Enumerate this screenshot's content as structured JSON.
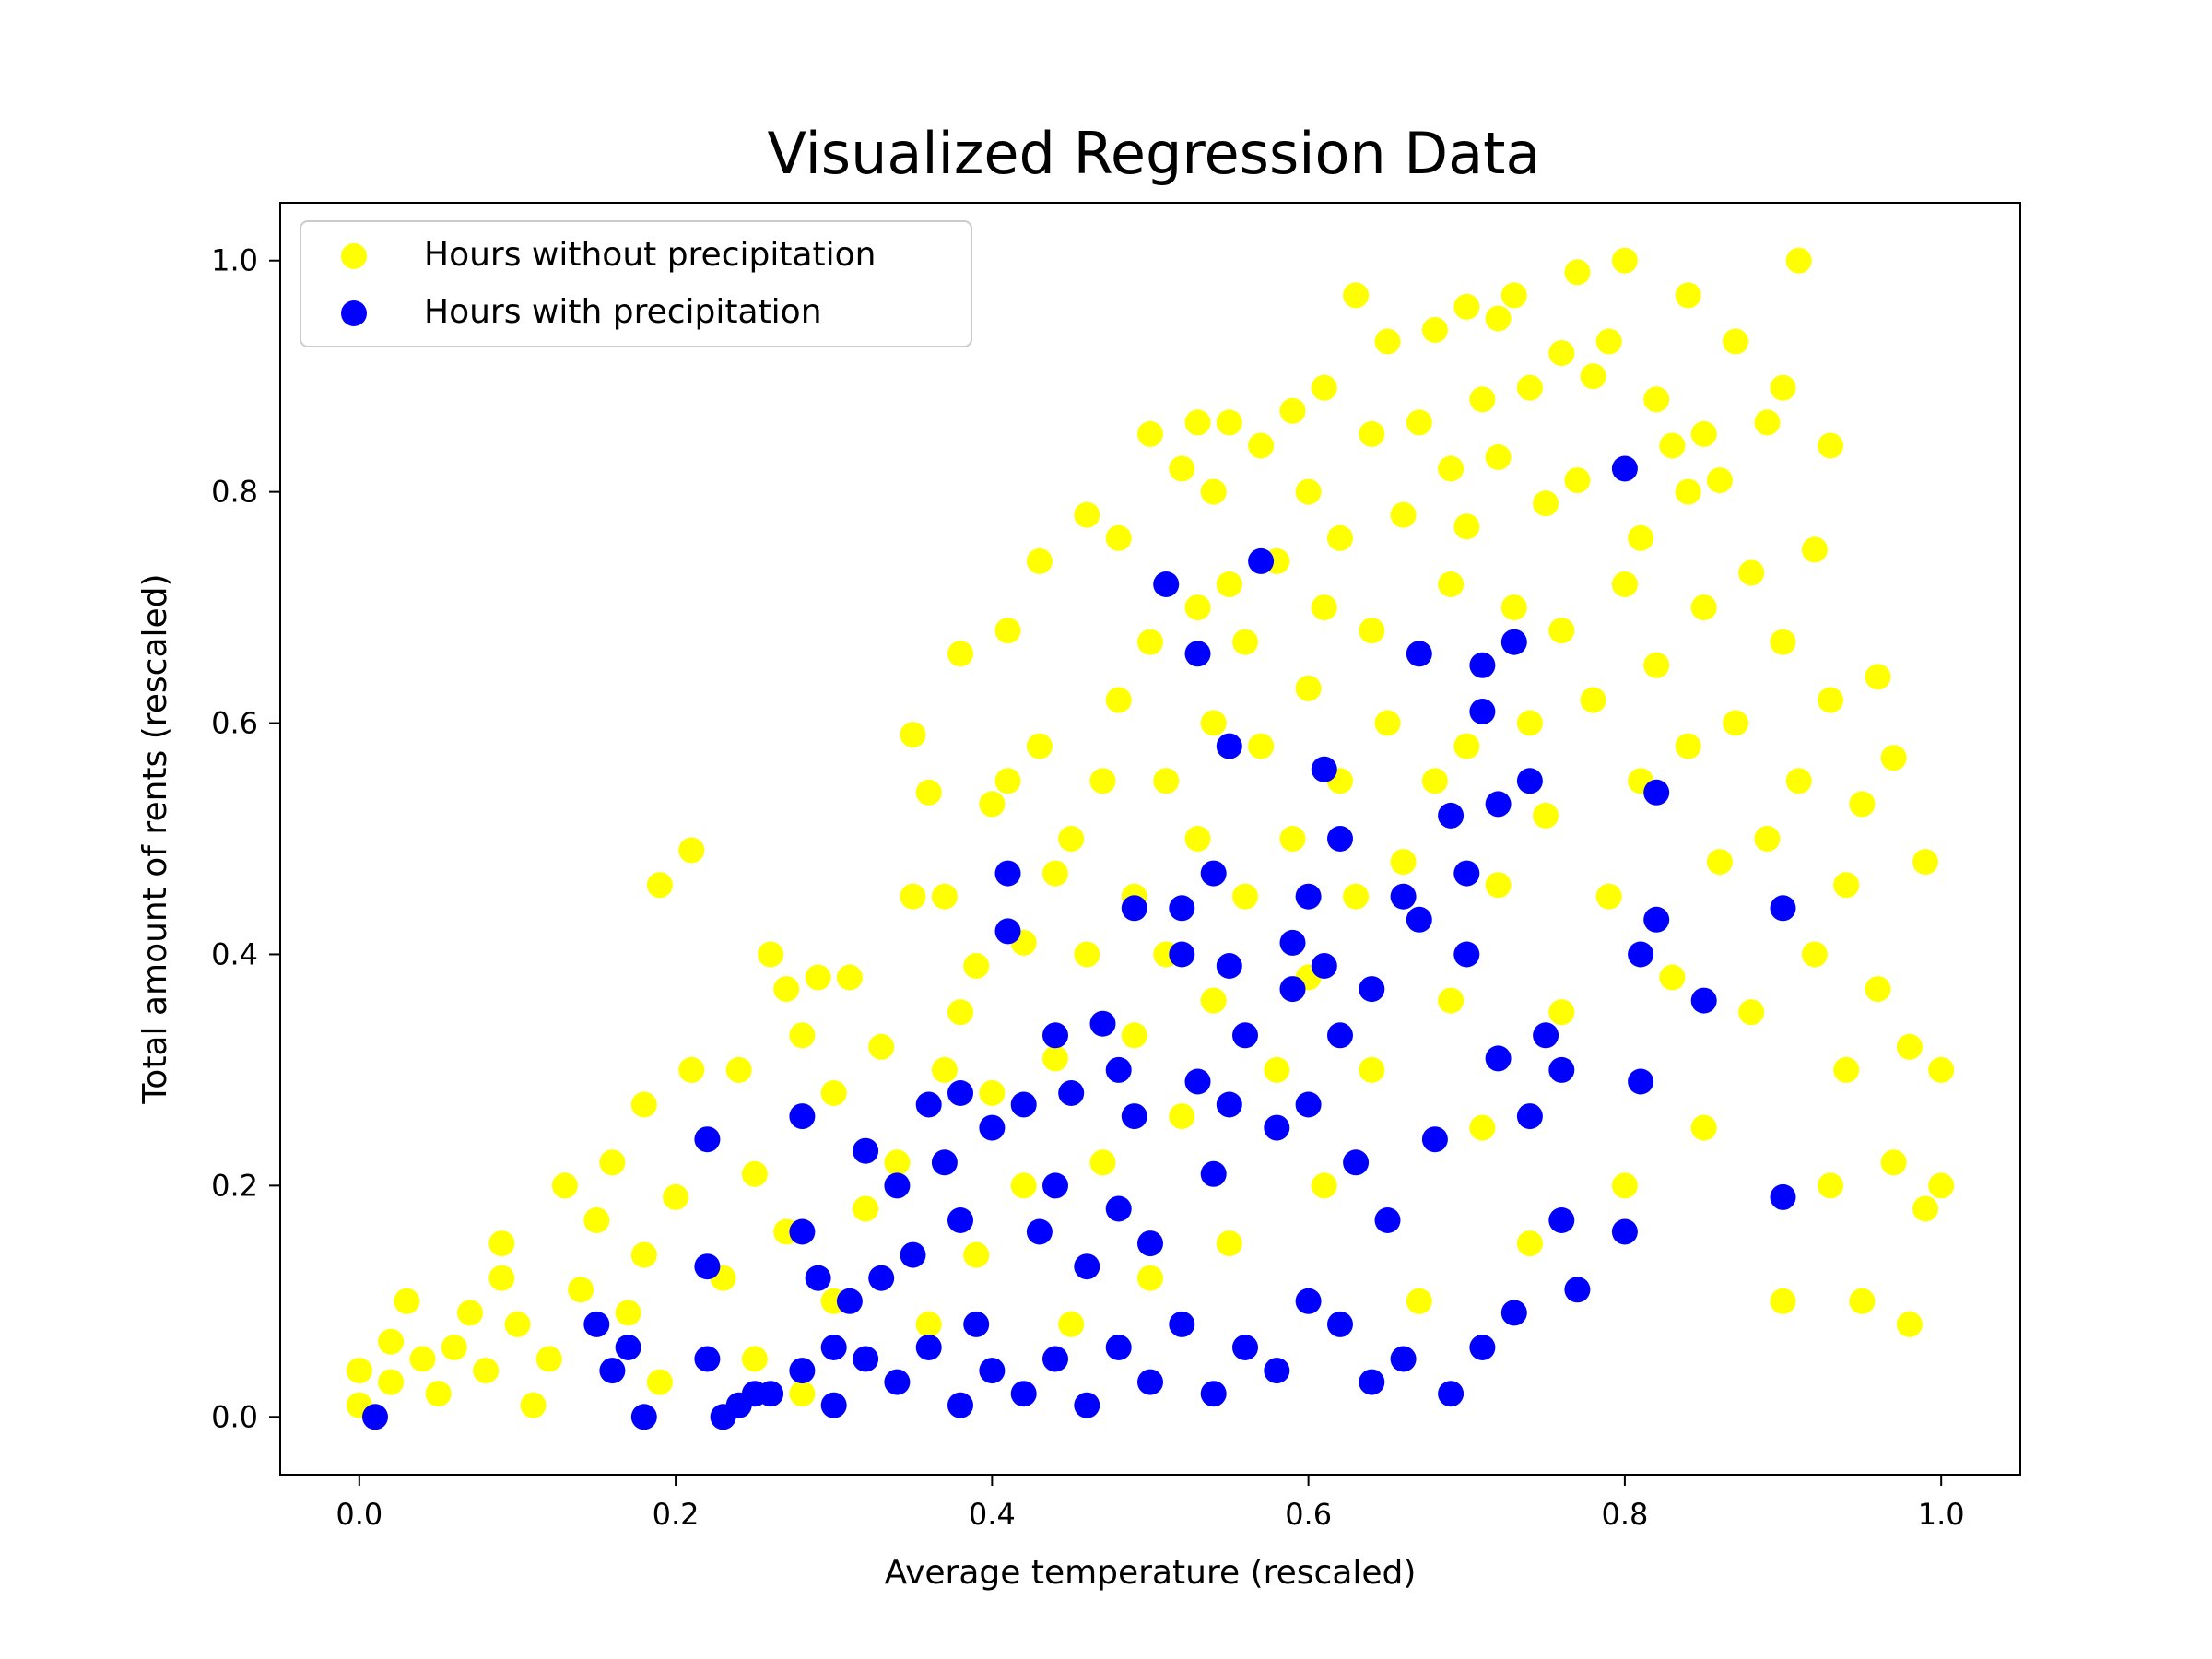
{
  "chart_data": {
    "type": "scatter",
    "title": "Visualized Regression Data",
    "xlabel": "Average temperature (rescaled)",
    "ylabel": "Total amount of rents (rescaled)",
    "xlim": [
      -0.05,
      1.05
    ],
    "ylim": [
      -0.05,
      1.05
    ],
    "xticks": [
      "0.0",
      "0.2",
      "0.4",
      "0.6",
      "0.8",
      "1.0"
    ],
    "yticks": [
      "0.0",
      "0.2",
      "0.4",
      "0.6",
      "0.8",
      "1.0"
    ],
    "grid": false,
    "legend_position": "upper-left",
    "series": [
      {
        "name": "Hours without precipitation",
        "color": "#ffff00",
        "points": [
          [
            0.0,
            0.04
          ],
          [
            0.0,
            0.01
          ],
          [
            0.02,
            0.03
          ],
          [
            0.02,
            0.065
          ],
          [
            0.03,
            0.1
          ],
          [
            0.04,
            0.05
          ],
          [
            0.05,
            0.02
          ],
          [
            0.06,
            0.06
          ],
          [
            0.07,
            0.09
          ],
          [
            0.08,
            0.04
          ],
          [
            0.09,
            0.15
          ],
          [
            0.09,
            0.12
          ],
          [
            0.1,
            0.08
          ],
          [
            0.11,
            0.01
          ],
          [
            0.12,
            0.05
          ],
          [
            0.13,
            0.2
          ],
          [
            0.14,
            0.11
          ],
          [
            0.15,
            0.17
          ],
          [
            0.16,
            0.22
          ],
          [
            0.17,
            0.09
          ],
          [
            0.18,
            0.27
          ],
          [
            0.18,
            0.14
          ],
          [
            0.19,
            0.46
          ],
          [
            0.19,
            0.03
          ],
          [
            0.2,
            0.19
          ],
          [
            0.21,
            0.49
          ],
          [
            0.21,
            0.3
          ],
          [
            0.22,
            0.24
          ],
          [
            0.23,
            0.12
          ],
          [
            0.24,
            0.3
          ],
          [
            0.25,
            0.21
          ],
          [
            0.25,
            0.05
          ],
          [
            0.26,
            0.4
          ],
          [
            0.27,
            0.37
          ],
          [
            0.27,
            0.16
          ],
          [
            0.28,
            0.33
          ],
          [
            0.28,
            0.02
          ],
          [
            0.29,
            0.38
          ],
          [
            0.3,
            0.28
          ],
          [
            0.3,
            0.1
          ],
          [
            0.31,
            0.38
          ],
          [
            0.32,
            0.18
          ],
          [
            0.33,
            0.32
          ],
          [
            0.34,
            0.22
          ],
          [
            0.35,
            0.59
          ],
          [
            0.35,
            0.45
          ],
          [
            0.36,
            0.54
          ],
          [
            0.36,
            0.08
          ],
          [
            0.37,
            0.45
          ],
          [
            0.37,
            0.3
          ],
          [
            0.38,
            0.66
          ],
          [
            0.38,
            0.35
          ],
          [
            0.39,
            0.39
          ],
          [
            0.39,
            0.14
          ],
          [
            0.4,
            0.53
          ],
          [
            0.4,
            0.28
          ],
          [
            0.41,
            0.55
          ],
          [
            0.41,
            0.68
          ],
          [
            0.42,
            0.41
          ],
          [
            0.42,
            0.2
          ],
          [
            0.43,
            0.74
          ],
          [
            0.43,
            0.58
          ],
          [
            0.44,
            0.47
          ],
          [
            0.44,
            0.31
          ],
          [
            0.45,
            0.5
          ],
          [
            0.45,
            0.08
          ],
          [
            0.46,
            0.78
          ],
          [
            0.46,
            0.4
          ],
          [
            0.47,
            0.55
          ],
          [
            0.47,
            0.22
          ],
          [
            0.48,
            0.76
          ],
          [
            0.48,
            0.62
          ],
          [
            0.49,
            0.45
          ],
          [
            0.49,
            0.33
          ],
          [
            0.5,
            0.85
          ],
          [
            0.5,
            0.67
          ],
          [
            0.5,
            0.12
          ],
          [
            0.51,
            0.55
          ],
          [
            0.51,
            0.4
          ],
          [
            0.52,
            0.82
          ],
          [
            0.52,
            0.26
          ],
          [
            0.53,
            0.86
          ],
          [
            0.53,
            0.7
          ],
          [
            0.53,
            0.5
          ],
          [
            0.54,
            0.8
          ],
          [
            0.54,
            0.6
          ],
          [
            0.54,
            0.36
          ],
          [
            0.55,
            0.86
          ],
          [
            0.55,
            0.72
          ],
          [
            0.55,
            0.15
          ],
          [
            0.56,
            0.67
          ],
          [
            0.56,
            0.45
          ],
          [
            0.57,
            0.84
          ],
          [
            0.57,
            0.58
          ],
          [
            0.58,
            0.74
          ],
          [
            0.58,
            0.3
          ],
          [
            0.59,
            0.87
          ],
          [
            0.59,
            0.5
          ],
          [
            0.6,
            0.8
          ],
          [
            0.6,
            0.63
          ],
          [
            0.6,
            0.38
          ],
          [
            0.61,
            0.89
          ],
          [
            0.61,
            0.7
          ],
          [
            0.61,
            0.2
          ],
          [
            0.62,
            0.76
          ],
          [
            0.62,
            0.55
          ],
          [
            0.63,
            0.97
          ],
          [
            0.63,
            0.45
          ],
          [
            0.64,
            0.85
          ],
          [
            0.64,
            0.68
          ],
          [
            0.64,
            0.3
          ],
          [
            0.65,
            0.93
          ],
          [
            0.65,
            0.6
          ],
          [
            0.66,
            0.78
          ],
          [
            0.66,
            0.48
          ],
          [
            0.67,
            0.86
          ],
          [
            0.67,
            0.66
          ],
          [
            0.67,
            0.1
          ],
          [
            0.68,
            0.94
          ],
          [
            0.68,
            0.55
          ],
          [
            0.69,
            0.82
          ],
          [
            0.69,
            0.72
          ],
          [
            0.69,
            0.36
          ],
          [
            0.7,
            0.96
          ],
          [
            0.7,
            0.77
          ],
          [
            0.7,
            0.58
          ],
          [
            0.71,
            0.88
          ],
          [
            0.71,
            0.65
          ],
          [
            0.71,
            0.25
          ],
          [
            0.72,
            0.95
          ],
          [
            0.72,
            0.83
          ],
          [
            0.72,
            0.46
          ],
          [
            0.73,
            0.97
          ],
          [
            0.73,
            0.7
          ],
          [
            0.74,
            0.89
          ],
          [
            0.74,
            0.6
          ],
          [
            0.74,
            0.15
          ],
          [
            0.75,
            0.79
          ],
          [
            0.75,
            0.52
          ],
          [
            0.76,
            0.92
          ],
          [
            0.76,
            0.68
          ],
          [
            0.76,
            0.35
          ],
          [
            0.77,
            0.99
          ],
          [
            0.77,
            0.81
          ],
          [
            0.78,
            0.9
          ],
          [
            0.78,
            0.62
          ],
          [
            0.79,
            0.93
          ],
          [
            0.79,
            0.45
          ],
          [
            0.8,
            1.0
          ],
          [
            0.8,
            0.72
          ],
          [
            0.8,
            0.2
          ],
          [
            0.81,
            0.76
          ],
          [
            0.81,
            0.55
          ],
          [
            0.82,
            0.88
          ],
          [
            0.82,
            0.65
          ],
          [
            0.83,
            0.84
          ],
          [
            0.83,
            0.38
          ],
          [
            0.84,
            0.97
          ],
          [
            0.84,
            0.8
          ],
          [
            0.84,
            0.58
          ],
          [
            0.85,
            0.85
          ],
          [
            0.85,
            0.7
          ],
          [
            0.85,
            0.25
          ],
          [
            0.86,
            0.81
          ],
          [
            0.86,
            0.48
          ],
          [
            0.87,
            0.93
          ],
          [
            0.87,
            0.6
          ],
          [
            0.88,
            0.73
          ],
          [
            0.88,
            0.35
          ],
          [
            0.89,
            0.86
          ],
          [
            0.89,
            0.5
          ],
          [
            0.9,
            0.89
          ],
          [
            0.9,
            0.67
          ],
          [
            0.9,
            0.1
          ],
          [
            0.91,
            0.55
          ],
          [
            0.91,
            1.0
          ],
          [
            0.92,
            0.75
          ],
          [
            0.92,
            0.4
          ],
          [
            0.93,
            0.84
          ],
          [
            0.93,
            0.62
          ],
          [
            0.93,
            0.2
          ],
          [
            0.94,
            0.46
          ],
          [
            0.94,
            0.3
          ],
          [
            0.95,
            0.53
          ],
          [
            0.95,
            0.1
          ],
          [
            0.96,
            0.64
          ],
          [
            0.96,
            0.37
          ],
          [
            0.97,
            0.57
          ],
          [
            0.97,
            0.22
          ],
          [
            0.98,
            0.32
          ],
          [
            0.98,
            0.08
          ],
          [
            0.99,
            0.48
          ],
          [
            0.99,
            0.18
          ],
          [
            1.0,
            0.3
          ],
          [
            1.0,
            0.2
          ]
        ]
      },
      {
        "name": "Hours with precipitation",
        "color": "#0000ff",
        "points": [
          [
            0.01,
            0.0
          ],
          [
            0.15,
            0.08
          ],
          [
            0.16,
            0.04
          ],
          [
            0.17,
            0.06
          ],
          [
            0.18,
            0.0
          ],
          [
            0.22,
            0.24
          ],
          [
            0.22,
            0.13
          ],
          [
            0.22,
            0.05
          ],
          [
            0.23,
            0.0
          ],
          [
            0.25,
            0.02
          ],
          [
            0.28,
            0.26
          ],
          [
            0.28,
            0.16
          ],
          [
            0.29,
            0.12
          ],
          [
            0.3,
            0.06
          ],
          [
            0.31,
            0.1
          ],
          [
            0.32,
            0.23
          ],
          [
            0.33,
            0.12
          ],
          [
            0.34,
            0.2
          ],
          [
            0.35,
            0.14
          ],
          [
            0.36,
            0.27
          ],
          [
            0.37,
            0.22
          ],
          [
            0.38,
            0.28
          ],
          [
            0.38,
            0.17
          ],
          [
            0.39,
            0.08
          ],
          [
            0.4,
            0.25
          ],
          [
            0.41,
            0.42
          ],
          [
            0.41,
            0.47
          ],
          [
            0.42,
            0.27
          ],
          [
            0.43,
            0.16
          ],
          [
            0.44,
            0.2
          ],
          [
            0.44,
            0.33
          ],
          [
            0.45,
            0.28
          ],
          [
            0.46,
            0.13
          ],
          [
            0.47,
            0.34
          ],
          [
            0.48,
            0.3
          ],
          [
            0.48,
            0.18
          ],
          [
            0.49,
            0.44
          ],
          [
            0.49,
            0.26
          ],
          [
            0.5,
            0.15
          ],
          [
            0.51,
            0.72
          ],
          [
            0.52,
            0.44
          ],
          [
            0.52,
            0.4
          ],
          [
            0.53,
            0.66
          ],
          [
            0.53,
            0.29
          ],
          [
            0.54,
            0.21
          ],
          [
            0.54,
            0.47
          ],
          [
            0.55,
            0.58
          ],
          [
            0.55,
            0.39
          ],
          [
            0.55,
            0.27
          ],
          [
            0.56,
            0.33
          ],
          [
            0.57,
            0.74
          ],
          [
            0.58,
            0.25
          ],
          [
            0.59,
            0.37
          ],
          [
            0.59,
            0.41
          ],
          [
            0.6,
            0.45
          ],
          [
            0.6,
            0.27
          ],
          [
            0.61,
            0.56
          ],
          [
            0.61,
            0.39
          ],
          [
            0.62,
            0.5
          ],
          [
            0.62,
            0.33
          ],
          [
            0.63,
            0.22
          ],
          [
            0.64,
            0.37
          ],
          [
            0.65,
            0.17
          ],
          [
            0.66,
            0.45
          ],
          [
            0.67,
            0.66
          ],
          [
            0.67,
            0.43
          ],
          [
            0.68,
            0.24
          ],
          [
            0.69,
            0.52
          ],
          [
            0.7,
            0.47
          ],
          [
            0.7,
            0.4
          ],
          [
            0.71,
            0.65
          ],
          [
            0.71,
            0.61
          ],
          [
            0.72,
            0.53
          ],
          [
            0.72,
            0.31
          ],
          [
            0.73,
            0.67
          ],
          [
            0.74,
            0.55
          ],
          [
            0.74,
            0.26
          ],
          [
            0.75,
            0.33
          ],
          [
            0.76,
            0.17
          ],
          [
            0.76,
            0.3
          ],
          [
            0.8,
            0.82
          ],
          [
            0.81,
            0.29
          ],
          [
            0.81,
            0.4
          ],
          [
            0.82,
            0.43
          ],
          [
            0.82,
            0.54
          ],
          [
            0.85,
            0.36
          ],
          [
            0.9,
            0.44
          ],
          [
            0.9,
            0.19
          ],
          [
            0.8,
            0.16
          ],
          [
            0.77,
            0.11
          ],
          [
            0.73,
            0.09
          ],
          [
            0.71,
            0.06
          ],
          [
            0.69,
            0.02
          ],
          [
            0.66,
            0.05
          ],
          [
            0.64,
            0.03
          ],
          [
            0.62,
            0.08
          ],
          [
            0.6,
            0.1
          ],
          [
            0.58,
            0.04
          ],
          [
            0.56,
            0.06
          ],
          [
            0.54,
            0.02
          ],
          [
            0.52,
            0.08
          ],
          [
            0.5,
            0.03
          ],
          [
            0.48,
            0.06
          ],
          [
            0.46,
            0.01
          ],
          [
            0.44,
            0.05
          ],
          [
            0.42,
            0.02
          ],
          [
            0.4,
            0.04
          ],
          [
            0.38,
            0.01
          ],
          [
            0.36,
            0.06
          ],
          [
            0.34,
            0.03
          ],
          [
            0.32,
            0.05
          ],
          [
            0.3,
            0.01
          ],
          [
            0.28,
            0.04
          ],
          [
            0.26,
            0.02
          ],
          [
            0.24,
            0.01
          ]
        ]
      }
    ]
  }
}
